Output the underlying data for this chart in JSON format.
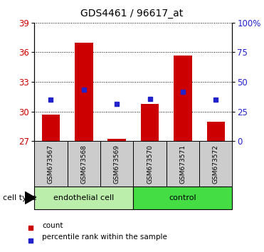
{
  "title": "GDS4461 / 96617_at",
  "samples": [
    "GSM673567",
    "GSM673568",
    "GSM673569",
    "GSM673570",
    "GSM673571",
    "GSM673572"
  ],
  "bar_values": [
    29.7,
    37.0,
    27.2,
    30.8,
    35.7,
    29.0
  ],
  "bar_base": 27.0,
  "blue_values": [
    31.2,
    32.2,
    30.8,
    31.3,
    32.0,
    31.2
  ],
  "ylim_left": [
    27,
    39
  ],
  "ylim_right": [
    0,
    100
  ],
  "yticks_left": [
    27,
    30,
    33,
    36,
    39
  ],
  "yticks_right": [
    0,
    25,
    50,
    75,
    100
  ],
  "ytick_labels_right": [
    "0",
    "25",
    "50",
    "75",
    "100%"
  ],
  "bar_color": "#cc0000",
  "blue_color": "#2222cc",
  "groups": [
    {
      "label": "endothelial cell",
      "indices": [
        0,
        1,
        2
      ],
      "color": "#bbeeaa"
    },
    {
      "label": "control",
      "indices": [
        3,
        4,
        5
      ],
      "color": "#44dd44"
    }
  ],
  "cell_type_label": "cell type",
  "legend_items": [
    {
      "color": "#cc0000",
      "label": "count"
    },
    {
      "color": "#2222cc",
      "label": "percentile rank within the sample"
    }
  ],
  "grid_style": "dotted",
  "tick_label_color_left": "#cc0000",
  "tick_label_color_right": "#2222cc",
  "bar_width": 0.55,
  "sample_area_color": "#cccccc",
  "bg_color": "#ffffff"
}
